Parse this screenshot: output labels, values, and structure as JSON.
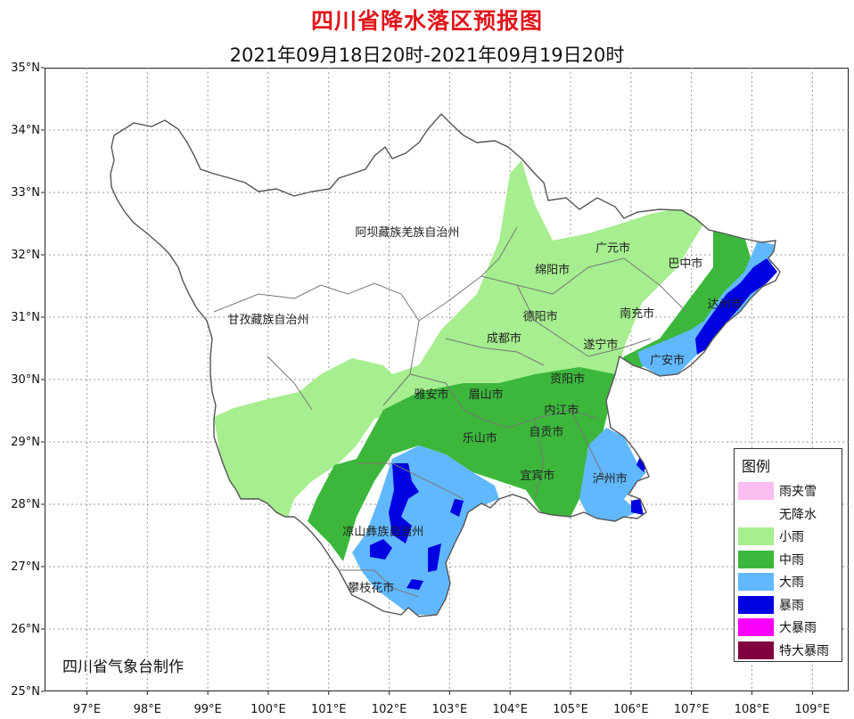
{
  "title": "四川省降水落区预报图",
  "subtitle": "2021年09月18日20时-2021年09月19日20时",
  "axes": {
    "lat_labels": [
      "35°N",
      "34°N",
      "33°N",
      "32°N",
      "31°N",
      "30°N",
      "29°N",
      "28°N",
      "27°N",
      "26°N",
      "25°N"
    ],
    "lon_labels": [
      "97°E",
      "98°E",
      "99°E",
      "100°E",
      "101°E",
      "102°E",
      "103°E",
      "104°E",
      "105°E",
      "106°E",
      "107°E",
      "108°E",
      "109°E"
    ]
  },
  "regions": [
    {
      "name": "阿坝藏族羌族自治州",
      "lon": 102.3,
      "lat": 32.3
    },
    {
      "name": "甘孜藏族自治州",
      "lon": 100.0,
      "lat": 30.9
    },
    {
      "name": "凉山彝族自治州",
      "lon": 101.9,
      "lat": 27.5
    },
    {
      "name": "攀枝花市",
      "lon": 101.7,
      "lat": 26.6
    },
    {
      "name": "雅安市",
      "lon": 102.7,
      "lat": 29.7
    },
    {
      "name": "眉山市",
      "lon": 103.6,
      "lat": 29.7
    },
    {
      "name": "乐山市",
      "lon": 103.5,
      "lat": 29.0
    },
    {
      "name": "成都市",
      "lon": 103.9,
      "lat": 30.6
    },
    {
      "name": "德阳市",
      "lon": 104.5,
      "lat": 30.95
    },
    {
      "name": "绵阳市",
      "lon": 104.7,
      "lat": 31.7
    },
    {
      "name": "广元市",
      "lon": 105.7,
      "lat": 32.05
    },
    {
      "name": "巴中市",
      "lon": 106.9,
      "lat": 31.8
    },
    {
      "name": "南充市",
      "lon": 106.1,
      "lat": 31.0
    },
    {
      "name": "达州市",
      "lon": 107.55,
      "lat": 31.15
    },
    {
      "name": "遂宁市",
      "lon": 105.5,
      "lat": 30.5
    },
    {
      "name": "广安市",
      "lon": 106.6,
      "lat": 30.25
    },
    {
      "name": "资阳市",
      "lon": 104.95,
      "lat": 29.95
    },
    {
      "name": "内江市",
      "lon": 104.85,
      "lat": 29.45
    },
    {
      "name": "自贡市",
      "lon": 104.6,
      "lat": 29.1
    },
    {
      "name": "宜宾市",
      "lon": 104.45,
      "lat": 28.4
    },
    {
      "name": "泸州市",
      "lon": 105.65,
      "lat": 28.35
    }
  ],
  "legend": {
    "title": "图例",
    "items": [
      {
        "label": "雨夹雪",
        "color": "#fbbcef"
      },
      {
        "label": "无降水",
        "color": "#ffffff"
      },
      {
        "label": "小雨",
        "color": "#a6ee8f"
      },
      {
        "label": "中雨",
        "color": "#3cb73c"
      },
      {
        "label": "大雨",
        "color": "#61b8ff"
      },
      {
        "label": "暴雨",
        "color": "#0000e1"
      },
      {
        "label": "大暴雨",
        "color": "#fa00fa"
      },
      {
        "label": "特大暴雨",
        "color": "#810040"
      }
    ]
  },
  "credit": "四川省气象台制作"
}
